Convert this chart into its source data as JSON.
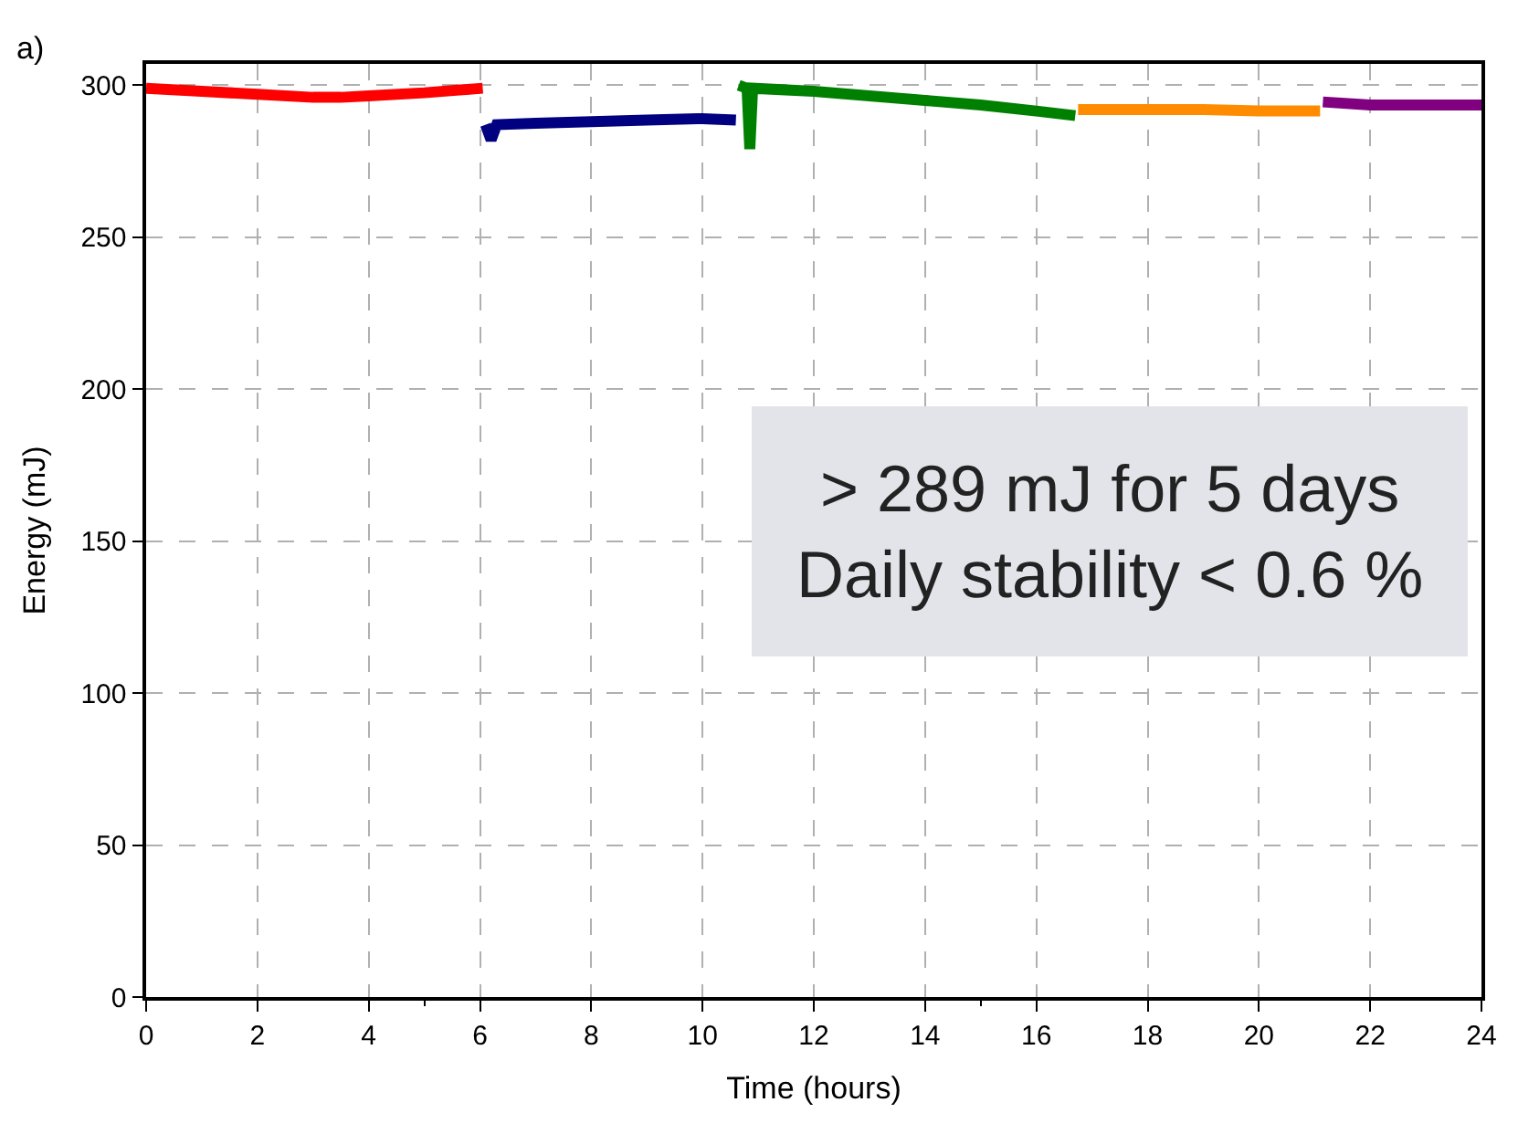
{
  "chart_data": {
    "type": "line",
    "xlabel": "Time (hours)",
    "ylabel": "Energy (mJ)",
    "annotations": [
      "a)",
      "> 289 mJ for 5 days",
      "Daily stability < 0.6 %"
    ],
    "xlim": [
      0,
      24
    ],
    "xticks": [
      0,
      2,
      4,
      6,
      8,
      10,
      12,
      14,
      16,
      18,
      20,
      22,
      24
    ],
    "ylim": [
      0,
      307
    ],
    "yticks": [
      0,
      50,
      100,
      150,
      200,
      250,
      300
    ],
    "grid": true,
    "marker": "none",
    "series": [
      {
        "color": "#ff0000",
        "x": [
          0,
          1,
          2,
          3,
          3.5,
          4,
          5,
          6.05
        ],
        "values": [
          299,
          298,
          297,
          296,
          296,
          296.5,
          297.5,
          299
        ]
      },
      {
        "color": "#000080",
        "x": [
          6.1,
          6.2,
          6.3,
          7,
          8,
          9,
          10,
          10.6
        ],
        "values": [
          287,
          282,
          287,
          287.5,
          288,
          288.5,
          289,
          288.5
        ]
      },
      {
        "color": "#008000",
        "x": [
          10.65,
          10.8,
          10.85,
          10.9,
          12,
          13,
          14,
          15,
          16,
          16.7
        ],
        "values": [
          300,
          299,
          279,
          299,
          298,
          296.5,
          295,
          293.5,
          291.5,
          290
        ]
      },
      {
        "color": "#ff8c00",
        "x": [
          16.75,
          17,
          18,
          19,
          20,
          21.1
        ],
        "values": [
          292,
          292,
          292,
          292,
          291.5,
          291.5
        ]
      },
      {
        "color": "#800080",
        "x": [
          21.15,
          22,
          23,
          24
        ],
        "values": [
          294.5,
          293.5,
          293.5,
          293.5
        ]
      }
    ]
  }
}
